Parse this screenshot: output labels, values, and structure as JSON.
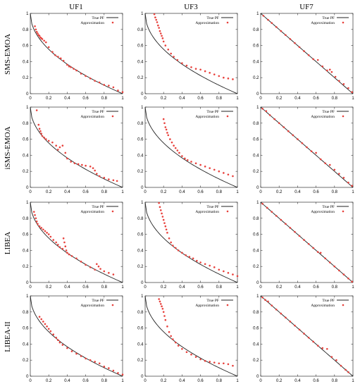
{
  "columns": [
    "UF1",
    "UF3",
    "UF7"
  ],
  "rows": [
    "SMS-EMOA",
    "iSMS-EMOA",
    "LIBEA",
    "LIBEA-II"
  ],
  "legend": {
    "true_pf": "True PF",
    "approximation": "Approximation"
  },
  "colors": {
    "true_pf": "#222222",
    "approximation": "#e8413c",
    "axis": "#333333"
  },
  "axes": {
    "xlim": [
      0,
      1
    ],
    "ylim": [
      0,
      1
    ],
    "xticks": [
      "0",
      "0.2",
      "0.4",
      "0.6",
      "0.8",
      "1"
    ],
    "yticks": [
      "0",
      "0.2",
      "0.4",
      "0.6",
      "0.8",
      "1"
    ]
  },
  "chart_data": [
    {
      "type": "scatter",
      "problem": "UF1",
      "algorithm": "SMS-EMOA",
      "true_pf": "1-sqrt(x)",
      "series": [
        {
          "name": "Approximation",
          "x": [
            0.05,
            0.06,
            0.07,
            0.08,
            0.09,
            0.1,
            0.11,
            0.12,
            0.13,
            0.15,
            0.17,
            0.2,
            0.24,
            0.27,
            0.3,
            0.33,
            0.36,
            0.4,
            0.42,
            0.44,
            0.47,
            0.5,
            0.55,
            0.6,
            0.65,
            0.7,
            0.75,
            0.8,
            0.85,
            0.9,
            0.95,
            1.0
          ],
          "y": [
            0.84,
            0.8,
            0.77,
            0.75,
            0.73,
            0.72,
            0.7,
            0.69,
            0.68,
            0.66,
            0.64,
            0.58,
            0.52,
            0.48,
            0.46,
            0.44,
            0.41,
            0.36,
            0.34,
            0.33,
            0.31,
            0.29,
            0.25,
            0.22,
            0.19,
            0.16,
            0.14,
            0.11,
            0.1,
            0.08,
            0.04,
            0.02
          ]
        }
      ]
    },
    {
      "type": "scatter",
      "problem": "UF3",
      "algorithm": "SMS-EMOA",
      "true_pf": "1-sqrt(x)",
      "series": [
        {
          "name": "Approximation",
          "x": [
            0.1,
            0.11,
            0.12,
            0.13,
            0.14,
            0.15,
            0.16,
            0.17,
            0.18,
            0.19,
            0.2,
            0.22,
            0.25,
            0.28,
            0.31,
            0.35,
            0.4,
            0.45,
            0.5,
            0.55,
            0.6,
            0.65,
            0.7,
            0.75,
            0.8,
            0.85,
            0.9,
            0.95
          ],
          "y": [
            0.99,
            0.95,
            0.92,
            0.89,
            0.85,
            0.82,
            0.78,
            0.75,
            0.72,
            0.69,
            0.65,
            0.6,
            0.55,
            0.5,
            0.46,
            0.42,
            0.38,
            0.35,
            0.33,
            0.31,
            0.3,
            0.28,
            0.26,
            0.24,
            0.22,
            0.2,
            0.19,
            0.18
          ]
        }
      ]
    },
    {
      "type": "scatter",
      "problem": "UF7",
      "algorithm": "SMS-EMOA",
      "true_pf": "1-x",
      "series": [
        {
          "name": "Approximation",
          "x": [
            0.03,
            0.08,
            0.12,
            0.17,
            0.22,
            0.27,
            0.32,
            0.37,
            0.42,
            0.47,
            0.52,
            0.57,
            0.62,
            0.67,
            0.72,
            0.75,
            0.77,
            0.81,
            0.85,
            0.9,
            0.95,
            0.99
          ],
          "y": [
            0.97,
            0.92,
            0.88,
            0.83,
            0.78,
            0.73,
            0.68,
            0.63,
            0.58,
            0.53,
            0.48,
            0.43,
            0.42,
            0.34,
            0.29,
            0.3,
            0.27,
            0.21,
            0.16,
            0.12,
            0.07,
            0.02
          ]
        }
      ]
    },
    {
      "type": "scatter",
      "problem": "UF1",
      "algorithm": "iSMS-EMOA",
      "true_pf": "1-sqrt(x)",
      "series": [
        {
          "name": "Approximation",
          "x": [
            0.07,
            0.09,
            0.1,
            0.11,
            0.12,
            0.13,
            0.15,
            0.17,
            0.2,
            0.24,
            0.28,
            0.3,
            0.32,
            0.35,
            0.38,
            0.4,
            0.44,
            0.48,
            0.52,
            0.56,
            0.6,
            0.65,
            0.68,
            0.7,
            0.72,
            0.75,
            0.8,
            0.85,
            0.9,
            0.94
          ],
          "y": [
            0.96,
            0.78,
            0.73,
            0.7,
            0.67,
            0.64,
            0.62,
            0.6,
            0.58,
            0.56,
            0.52,
            0.47,
            0.5,
            0.52,
            0.43,
            0.36,
            0.32,
            0.3,
            0.29,
            0.28,
            0.27,
            0.26,
            0.24,
            0.21,
            0.17,
            0.14,
            0.12,
            0.1,
            0.09,
            0.08
          ]
        }
      ]
    },
    {
      "type": "scatter",
      "problem": "UF3",
      "algorithm": "iSMS-EMOA",
      "true_pf": "1-sqrt(x)",
      "series": [
        {
          "name": "Approximation",
          "x": [
            0.2,
            0.21,
            0.22,
            0.23,
            0.24,
            0.25,
            0.27,
            0.29,
            0.31,
            0.33,
            0.35,
            0.37,
            0.4,
            0.43,
            0.46,
            0.5,
            0.55,
            0.6,
            0.65,
            0.7,
            0.75,
            0.8,
            0.85,
            0.9,
            0.95
          ],
          "y": [
            0.85,
            0.8,
            0.75,
            0.72,
            0.68,
            0.65,
            0.6,
            0.56,
            0.52,
            0.49,
            0.46,
            0.43,
            0.39,
            0.36,
            0.34,
            0.32,
            0.3,
            0.28,
            0.26,
            0.24,
            0.22,
            0.2,
            0.18,
            0.16,
            0.14
          ]
        }
      ]
    },
    {
      "type": "scatter",
      "problem": "UF7",
      "algorithm": "iSMS-EMOA",
      "true_pf": "1-x",
      "series": [
        {
          "name": "Approximation",
          "x": [
            0.02,
            0.06,
            0.1,
            0.15,
            0.2,
            0.25,
            0.3,
            0.35,
            0.4,
            0.45,
            0.5,
            0.55,
            0.6,
            0.65,
            0.7,
            0.75,
            0.8,
            0.85,
            0.9,
            0.95,
            0.99
          ],
          "y": [
            0.98,
            0.95,
            0.9,
            0.85,
            0.8,
            0.75,
            0.7,
            0.65,
            0.6,
            0.55,
            0.5,
            0.45,
            0.43,
            0.35,
            0.3,
            0.28,
            0.22,
            0.17,
            0.12,
            0.06,
            0.02
          ]
        }
      ]
    },
    {
      "type": "scatter",
      "problem": "UF1",
      "algorithm": "LIBEA",
      "true_pf": "1-sqrt(x)",
      "series": [
        {
          "name": "Approximation",
          "x": [
            0.04,
            0.05,
            0.06,
            0.07,
            0.08,
            0.1,
            0.12,
            0.14,
            0.16,
            0.18,
            0.2,
            0.22,
            0.25,
            0.28,
            0.3,
            0.32,
            0.35,
            0.36,
            0.37,
            0.38,
            0.39,
            0.4,
            0.42,
            0.45,
            0.5,
            0.55,
            0.6,
            0.65,
            0.7,
            0.72,
            0.74,
            0.76,
            0.8,
            0.85,
            0.9
          ],
          "y": [
            0.88,
            0.84,
            0.8,
            0.76,
            0.73,
            0.7,
            0.68,
            0.66,
            0.64,
            0.62,
            0.6,
            0.57,
            0.53,
            0.5,
            0.47,
            0.44,
            0.42,
            0.55,
            0.5,
            0.45,
            0.4,
            0.37,
            0.35,
            0.33,
            0.3,
            0.26,
            0.22,
            0.19,
            0.16,
            0.23,
            0.2,
            0.17,
            0.14,
            0.12,
            0.1
          ]
        }
      ]
    },
    {
      "type": "scatter",
      "problem": "UF3",
      "algorithm": "LIBEA",
      "true_pf": "1-sqrt(x)",
      "series": [
        {
          "name": "Approximation",
          "x": [
            0.15,
            0.16,
            0.17,
            0.18,
            0.19,
            0.2,
            0.21,
            0.22,
            0.23,
            0.24,
            0.26,
            0.28,
            0.3,
            0.33,
            0.36,
            0.4,
            0.44,
            0.48,
            0.52,
            0.56,
            0.6,
            0.65,
            0.7,
            0.75,
            0.8,
            0.85,
            0.9,
            0.95,
            1.0
          ],
          "y": [
            0.99,
            0.94,
            0.9,
            0.86,
            0.82,
            0.78,
            0.74,
            0.7,
            0.66,
            0.62,
            0.55,
            0.5,
            0.46,
            0.43,
            0.4,
            0.37,
            0.34,
            0.32,
            0.3,
            0.27,
            0.25,
            0.23,
            0.21,
            0.19,
            0.16,
            0.14,
            0.12,
            0.1,
            0.08
          ]
        }
      ]
    },
    {
      "type": "scatter",
      "problem": "UF7",
      "algorithm": "LIBEA",
      "true_pf": "1-x",
      "series": [
        {
          "name": "Approximation",
          "x": [
            0.02,
            0.07,
            0.12,
            0.17,
            0.22,
            0.27,
            0.32,
            0.37,
            0.42,
            0.47,
            0.52,
            0.57,
            0.62,
            0.65,
            0.7,
            0.75,
            0.8,
            0.85,
            0.9,
            0.95,
            0.99
          ],
          "y": [
            0.98,
            0.93,
            0.88,
            0.83,
            0.78,
            0.73,
            0.68,
            0.63,
            0.58,
            0.53,
            0.48,
            0.43,
            0.38,
            0.37,
            0.3,
            0.25,
            0.2,
            0.15,
            0.1,
            0.05,
            0.01
          ]
        }
      ]
    },
    {
      "type": "scatter",
      "problem": "UF1",
      "algorithm": "LIBEA-II",
      "true_pf": "1-sqrt(x)",
      "series": [
        {
          "name": "Approximation",
          "x": [
            0.1,
            0.12,
            0.14,
            0.16,
            0.18,
            0.2,
            0.22,
            0.25,
            0.28,
            0.3,
            0.32,
            0.35,
            0.4,
            0.45,
            0.5,
            0.55,
            0.6,
            0.65,
            0.7,
            0.75,
            0.8,
            0.85,
            0.9,
            0.95,
            1.0
          ],
          "y": [
            0.74,
            0.71,
            0.68,
            0.65,
            0.62,
            0.59,
            0.56,
            0.52,
            0.48,
            0.45,
            0.42,
            0.39,
            0.35,
            0.31,
            0.28,
            0.25,
            0.22,
            0.2,
            0.18,
            0.16,
            0.12,
            0.1,
            0.07,
            0.04,
            0.02
          ]
        }
      ]
    },
    {
      "type": "scatter",
      "problem": "UF3",
      "algorithm": "LIBEA-II",
      "true_pf": "1-sqrt(x)",
      "series": [
        {
          "name": "Approximation",
          "x": [
            0.15,
            0.16,
            0.17,
            0.18,
            0.19,
            0.2,
            0.21,
            0.22,
            0.24,
            0.26,
            0.28,
            0.3,
            0.33,
            0.36,
            0.4,
            0.45,
            0.5,
            0.55,
            0.6,
            0.65,
            0.7,
            0.75,
            0.8,
            0.85,
            0.9,
            0.95
          ],
          "y": [
            0.96,
            0.93,
            0.9,
            0.87,
            0.84,
            0.8,
            0.75,
            0.7,
            0.62,
            0.55,
            0.5,
            0.46,
            0.42,
            0.38,
            0.34,
            0.3,
            0.27,
            0.24,
            0.21,
            0.19,
            0.18,
            0.17,
            0.16,
            0.16,
            0.15,
            0.13
          ]
        }
      ]
    },
    {
      "type": "scatter",
      "problem": "UF7",
      "algorithm": "LIBEA-II",
      "true_pf": "1-x",
      "series": [
        {
          "name": "Approximation",
          "x": [
            0.02,
            0.05,
            0.08,
            0.12,
            0.17,
            0.22,
            0.27,
            0.32,
            0.37,
            0.42,
            0.47,
            0.52,
            0.57,
            0.62,
            0.67,
            0.72,
            0.77,
            0.82,
            0.87,
            0.92,
            0.95
          ],
          "y": [
            0.98,
            0.95,
            0.93,
            0.88,
            0.83,
            0.78,
            0.73,
            0.68,
            0.63,
            0.58,
            0.53,
            0.48,
            0.43,
            0.38,
            0.35,
            0.34,
            0.24,
            0.2,
            0.13,
            0.08,
            0.05
          ]
        }
      ]
    }
  ]
}
